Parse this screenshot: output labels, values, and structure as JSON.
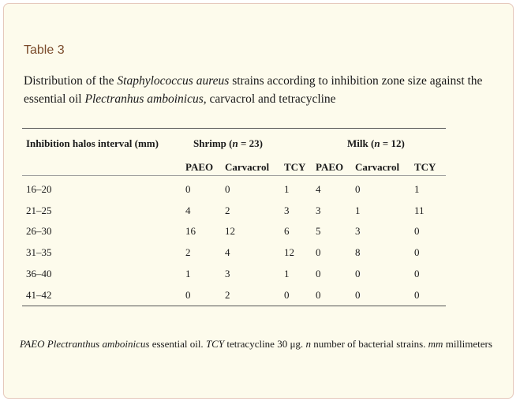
{
  "table_label": "Table 3",
  "caption": {
    "part1": "Distribution of the ",
    "species": "Staphylococcus aureus",
    "part2": " strains according to inhibition zone size against the essential oil ",
    "oil": "Plectranhus amboinicus",
    "part3": ", carvacrol and tetracycline"
  },
  "table": {
    "header_interval": "Inhibition halos interval (mm)",
    "group_shrimp": {
      "name": "Shrimp (",
      "n": "n",
      "eq": " = 23)"
    },
    "group_milk": {
      "name": "Milk (",
      "n": "n",
      "eq": " = 12)"
    },
    "subheaders": [
      "PAEO",
      "Carvacrol",
      "TCY",
      "PAEO",
      "Carvacrol",
      "TCY"
    ],
    "rows": [
      [
        "16–20",
        "0",
        "0",
        "1",
        "4",
        "0",
        "1"
      ],
      [
        "21–25",
        "4",
        "2",
        "3",
        "3",
        "1",
        "11"
      ],
      [
        "26–30",
        "16",
        "12",
        "6",
        "5",
        "3",
        "0"
      ],
      [
        "31–35",
        "2",
        "4",
        "12",
        "0",
        "8",
        "0"
      ],
      [
        "36–40",
        "1",
        "3",
        "1",
        "0",
        "0",
        "0"
      ],
      [
        "41–42",
        "0",
        "2",
        "0",
        "0",
        "0",
        "0"
      ]
    ]
  },
  "footnote": {
    "paeo_abbr": "PAEO",
    "paeo_species": "Plectranthus amboinicus",
    "paeo_rest": " essential oil. ",
    "tcy_abbr": "TCY",
    "tcy_rest": " tetracycline 30 μg. ",
    "n_abbr": "n",
    "n_rest": " number of bacterial strains. ",
    "mm_abbr": "mm",
    "mm_rest": " millimeters"
  }
}
